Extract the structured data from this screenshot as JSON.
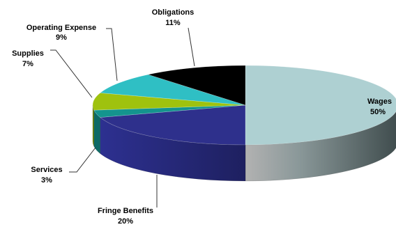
{
  "chart_data": {
    "type": "pie",
    "title": "",
    "legend": "none",
    "slices": [
      {
        "name": "Wages",
        "value": 50,
        "label": "50%",
        "color": "#aed0d2",
        "side": "#4d5e5f"
      },
      {
        "name": "Fringe Benefits",
        "value": 20,
        "label": "20%",
        "color": "#2e308c",
        "side": "#24266e"
      },
      {
        "name": "Services",
        "value": 3,
        "label": "3%",
        "color": "#14948e",
        "side": "#0d6a66"
      },
      {
        "name": "Supplies",
        "value": 7,
        "label": "7%",
        "color": "#9fc20e",
        "side": "#6f880a"
      },
      {
        "name": "Operating Expense",
        "value": 9,
        "label": "9%",
        "color": "#2fbfc4",
        "side": "#1f8a8e"
      },
      {
        "name": "Obligations",
        "value": 11,
        "label": "11%",
        "color": "#000000",
        "side": "#000000"
      }
    ]
  }
}
